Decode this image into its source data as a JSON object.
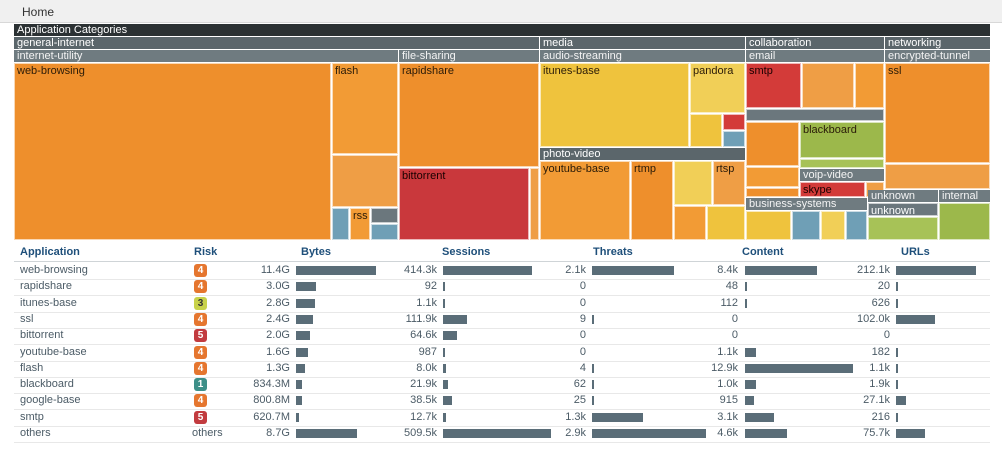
{
  "nav": {
    "home": "Home"
  },
  "treemap": {
    "title": "Application Categories",
    "groups": {
      "general_internet": "general-internet",
      "media": "media",
      "collaboration": "collaboration",
      "networking": "networking",
      "internet_utility": "internet-utility",
      "file_sharing": "file-sharing",
      "audio_streaming": "audio-streaming",
      "email": "email",
      "encrypted_tunnel": "encrypted-tunnel",
      "photo_video": "photo-video",
      "voip_video": "voip-video",
      "business_systems": "business-systems",
      "unknown_group": "unknown",
      "internal": "internal"
    },
    "cells": {
      "web_browsing": "web-browsing",
      "flash": "flash",
      "rss": "rss",
      "rapidshare": "rapidshare",
      "bittorrent": "bittorrent",
      "itunes_base": "itunes-base",
      "pandora": "pandora",
      "youtube_base": "youtube-base",
      "rtsp": "rtsp",
      "rtmp": "rtmp",
      "smtp": "smtp",
      "blackboard": "blackboard",
      "skype": "skype",
      "ssl": "ssl",
      "unknown": "unknown"
    }
  },
  "table": {
    "headers": {
      "application": "Application",
      "risk": "Risk",
      "bytes": "Bytes",
      "sessions": "Sessions",
      "threats": "Threats",
      "content": "Content",
      "urls": "URLs"
    },
    "rows": [
      {
        "app": "web-browsing",
        "risk": "4",
        "bytes": "11.4G",
        "bytes_fill": 0.87,
        "sessions": "414.3k",
        "sessions_fill": 0.82,
        "threats": "2.1k",
        "threats_fill": 0.72,
        "content": "8.4k",
        "content_fill": 0.65,
        "urls": "212.1k",
        "urls_fill": 0.87
      },
      {
        "app": "rapidshare",
        "risk": "4",
        "bytes": "3.0G",
        "bytes_fill": 0.22,
        "sessions": "92",
        "sessions_fill": 0.02,
        "threats": "0",
        "threats_fill": 0,
        "content": "48",
        "content_fill": 0.02,
        "urls": "20",
        "urls_fill": 0.02
      },
      {
        "app": "itunes-base",
        "risk": "3",
        "bytes": "2.8G",
        "bytes_fill": 0.21,
        "sessions": "1.1k",
        "sessions_fill": 0.02,
        "threats": "0",
        "threats_fill": 0,
        "content": "112",
        "content_fill": 0.02,
        "urls": "626",
        "urls_fill": 0.02
      },
      {
        "app": "ssl",
        "risk": "4",
        "bytes": "2.4G",
        "bytes_fill": 0.18,
        "sessions": "111.9k",
        "sessions_fill": 0.22,
        "threats": "9",
        "threats_fill": 0.02,
        "content": "0",
        "content_fill": 0,
        "urls": "102.0k",
        "urls_fill": 0.42
      },
      {
        "app": "bittorrent",
        "risk": "5",
        "bytes": "2.0G",
        "bytes_fill": 0.15,
        "sessions": "64.6k",
        "sessions_fill": 0.13,
        "threats": "0",
        "threats_fill": 0,
        "content": "0",
        "content_fill": 0,
        "urls": "0",
        "urls_fill": 0
      },
      {
        "app": "youtube-base",
        "risk": "4",
        "bytes": "1.6G",
        "bytes_fill": 0.13,
        "sessions": "987",
        "sessions_fill": 0.02,
        "threats": "0",
        "threats_fill": 0,
        "content": "1.1k",
        "content_fill": 0.1,
        "urls": "182",
        "urls_fill": 0.02
      },
      {
        "app": "flash",
        "risk": "4",
        "bytes": "1.3G",
        "bytes_fill": 0.1,
        "sessions": "8.0k",
        "sessions_fill": 0.03,
        "threats": "4",
        "threats_fill": 0.02,
        "content": "12.9k",
        "content_fill": 0.98,
        "urls": "1.1k",
        "urls_fill": 0.02
      },
      {
        "app": "blackboard",
        "risk": "1",
        "bytes": "834.3M",
        "bytes_fill": 0.07,
        "sessions": "21.9k",
        "sessions_fill": 0.05,
        "threats": "62",
        "threats_fill": 0.02,
        "content": "1.0k",
        "content_fill": 0.1,
        "urls": "1.9k",
        "urls_fill": 0.02
      },
      {
        "app": "google-base",
        "risk": "4",
        "bytes": "800.8M",
        "bytes_fill": 0.07,
        "sessions": "38.5k",
        "sessions_fill": 0.08,
        "threats": "25",
        "threats_fill": 0.02,
        "content": "915",
        "content_fill": 0.08,
        "urls": "27.1k",
        "urls_fill": 0.11
      },
      {
        "app": "smtp",
        "risk": "5",
        "bytes": "620.7M",
        "bytes_fill": 0.03,
        "sessions": "12.7k",
        "sessions_fill": 0.03,
        "threats": "1.3k",
        "threats_fill": 0.45,
        "content": "3.1k",
        "content_fill": 0.26,
        "urls": "216",
        "urls_fill": 0.02
      },
      {
        "app": "others",
        "risk": "others",
        "bytes": "8.7G",
        "bytes_fill": 0.66,
        "sessions": "509.5k",
        "sessions_fill": 1.0,
        "threats": "2.9k",
        "threats_fill": 1.0,
        "content": "4.6k",
        "content_fill": 0.38,
        "urls": "75.7k",
        "urls_fill": 0.31
      }
    ]
  }
}
